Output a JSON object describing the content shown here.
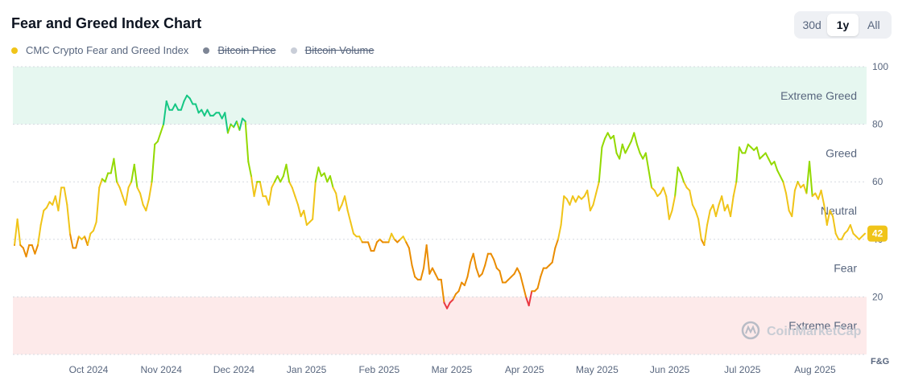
{
  "title": "Fear and Greed Index Chart",
  "range_buttons": {
    "b30d": "30d",
    "b1y": "1y",
    "ball": "All",
    "active": "1y"
  },
  "legend": [
    {
      "label": "CMC Crypto Fear and Greed Index",
      "color": "#f0c419",
      "visible": true
    },
    {
      "label": "Bitcoin Price",
      "color": "#7d8595",
      "visible": false
    },
    {
      "label": "Bitcoin Volume",
      "color": "#c9ced8",
      "visible": false
    }
  ],
  "watermark": "CoinMarketCap",
  "chart_data": {
    "type": "line",
    "ylim": [
      0,
      100
    ],
    "yticks": [
      "100",
      "80",
      "60",
      "40",
      "20"
    ],
    "y_axis_unit": "F&G",
    "grid": true,
    "zones": [
      {
        "label": "Extreme Greed",
        "min": 80,
        "max": 100,
        "color": "#e6f7f0"
      },
      {
        "label": "Greed",
        "min": 60,
        "max": 80
      },
      {
        "label": "Neutral",
        "min": 40,
        "max": 60
      },
      {
        "label": "Fear",
        "min": 20,
        "max": 40
      },
      {
        "label": "Extreme Fear",
        "min": 0,
        "max": 20,
        "color": "#fdeaea"
      }
    ],
    "x_labels": [
      "Oct 2024",
      "Nov 2024",
      "Dec 2024",
      "Jan 2025",
      "Feb 2025",
      "Mar 2025",
      "Apr 2025",
      "May 2025",
      "Jun 2025",
      "Jul 2025",
      "Aug 2025"
    ],
    "current_value": 42,
    "series": [
      {
        "values": [
          38,
          47,
          38,
          37,
          34,
          38,
          38,
          35,
          38,
          45,
          50,
          51,
          53,
          52,
          55,
          50,
          58,
          58,
          52,
          42,
          37,
          37,
          41,
          40,
          41,
          38,
          42,
          43,
          46,
          58,
          61,
          60,
          63,
          63,
          68,
          60,
          58,
          55,
          52,
          58,
          60,
          66,
          58,
          56,
          52,
          50,
          54,
          60,
          73,
          74,
          77,
          80,
          88,
          85,
          85,
          87,
          85,
          85,
          88,
          90,
          89,
          87,
          87,
          84,
          85,
          83,
          85,
          83,
          83,
          84,
          84,
          82,
          84,
          77,
          80,
          79,
          81,
          78,
          82,
          81,
          67,
          62,
          55,
          60,
          60,
          55,
          55,
          52,
          58,
          60,
          62,
          60,
          62,
          66,
          60,
          58,
          55,
          52,
          48,
          50,
          45,
          46,
          47,
          60,
          65,
          62,
          63,
          60,
          62,
          58,
          56,
          50,
          52,
          55,
          50,
          46,
          42,
          41,
          41,
          39,
          39,
          39,
          36,
          36,
          39,
          40,
          39,
          39,
          39,
          42,
          40,
          39,
          40,
          41,
          39,
          37,
          31,
          27,
          26,
          26,
          30,
          38,
          28,
          30,
          28,
          26,
          26,
          18,
          16,
          18,
          19,
          21,
          22,
          25,
          24,
          27,
          32,
          35,
          30,
          27,
          28,
          31,
          35,
          35,
          33,
          30,
          29,
          25,
          25,
          26,
          27,
          28,
          30,
          28,
          24,
          20,
          17,
          22,
          22,
          23,
          27,
          30,
          30,
          31,
          32,
          37,
          40,
          45,
          55,
          54,
          52,
          55,
          53,
          55,
          54,
          55,
          57,
          50,
          52,
          56,
          60,
          72,
          75,
          77,
          75,
          76,
          70,
          68,
          73,
          70,
          72,
          74,
          77,
          73,
          70,
          68,
          70,
          64,
          58,
          57,
          55,
          56,
          58,
          55,
          47,
          50,
          55,
          65,
          63,
          60,
          58,
          57,
          52,
          50,
          47,
          40,
          38,
          45,
          50,
          52,
          48,
          52,
          55,
          50,
          52,
          48,
          55,
          60,
          72,
          70,
          70,
          73,
          72,
          71,
          72,
          68,
          69,
          70,
          68,
          66,
          67,
          64,
          62,
          60,
          56,
          50,
          48,
          57,
          60,
          58,
          59,
          56,
          67,
          55,
          56,
          54,
          57,
          52,
          45,
          50,
          48,
          42,
          40,
          40,
          42,
          43,
          45,
          42,
          41,
          40,
          41,
          42
        ]
      }
    ]
  }
}
